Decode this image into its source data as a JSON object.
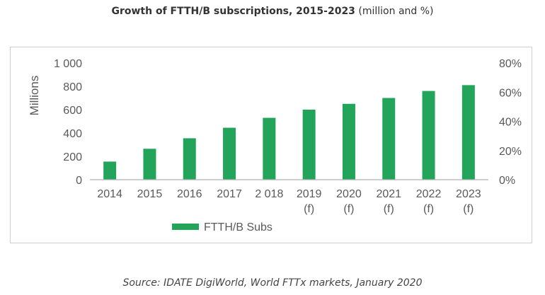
{
  "caption": {
    "title_bold": "Growth of FTTH/B subscriptions, 2015-2023",
    "title_rest": "(million and %)"
  },
  "source": "Source: IDATE DigiWorld, World FTTx markets, January 2020",
  "chart_data": {
    "type": "bar",
    "title": "Growth of FTTH/B subscriptions, 2015-2023 (million and %)",
    "categories": [
      {
        "line1": "2014",
        "line2": ""
      },
      {
        "line1": "2015",
        "line2": ""
      },
      {
        "line1": "2016",
        "line2": ""
      },
      {
        "line1": "2017",
        "line2": ""
      },
      {
        "line1": "2 018",
        "line2": ""
      },
      {
        "line1": "2019",
        "line2": "(f)"
      },
      {
        "line1": "2020",
        "line2": "(f)"
      },
      {
        "line1": "2021",
        "line2": "(f)"
      },
      {
        "line1": "2022",
        "line2": "(f)"
      },
      {
        "line1": "2023",
        "line2": "(f)"
      }
    ],
    "series": [
      {
        "name": "FTTH/B Subs",
        "color": "#22a55a",
        "values": [
          155,
          265,
          355,
          445,
          530,
          600,
          650,
          700,
          760,
          810
        ]
      }
    ],
    "ylabel": "Millions",
    "ylim": [
      0,
      1000
    ],
    "y_ticks": [
      {
        "value": 0,
        "label": "0"
      },
      {
        "value": 200,
        "label": "200"
      },
      {
        "value": 400,
        "label": "400"
      },
      {
        "value": 600,
        "label": "600"
      },
      {
        "value": 800,
        "label": "800"
      },
      {
        "value": 1000,
        "label": "1 000"
      }
    ],
    "y2lim": [
      0,
      80
    ],
    "y2_ticks": [
      {
        "value": 0,
        "label": "0%"
      },
      {
        "value": 20,
        "label": "20%"
      },
      {
        "value": 40,
        "label": "40%"
      },
      {
        "value": 60,
        "label": "60%"
      },
      {
        "value": 80,
        "label": "80%"
      }
    ],
    "legend_position": "bottom-center",
    "grid": false,
    "colors": {
      "axis": "#b0b0b0",
      "tick_text": "#595959"
    }
  }
}
